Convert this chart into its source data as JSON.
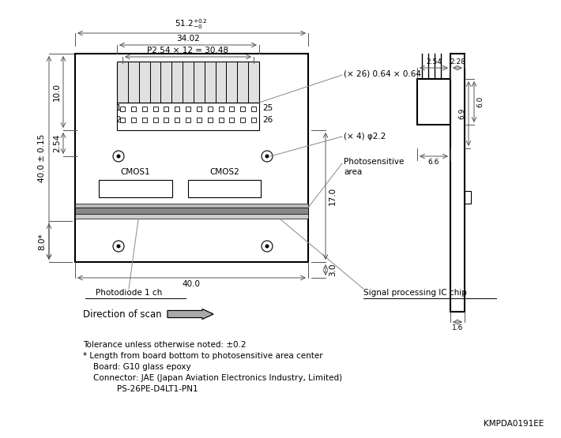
{
  "bg_color": "#ffffff",
  "line_color": "#000000",
  "gray_color": "#888888",
  "light_gray": "#cccccc",
  "dim_color": "#555555",
  "annotations": {
    "label_CMOS1": "CMOS1",
    "label_CMOS2": "CMOS2",
    "label_photodiode": "Photodiode 1 ch",
    "label_signal": "Signal processing IC chip",
    "label_1": "1",
    "label_2": "2",
    "label_25": "25",
    "label_26": "26",
    "dir_scan": "Direction of scan",
    "tolerance": "Tolerance unless otherwise noted: ±0.2",
    "length_note": "* Length from board bottom to photosensitive area center",
    "board": "Board: G10 glass epoxy",
    "connector": "Connector: JAE (Japan Aviation Electronics Industry, Limited)",
    "part_num": "PS-26PE-D4LT1-PN1",
    "catalog_num": "KMPDA0191EE"
  }
}
